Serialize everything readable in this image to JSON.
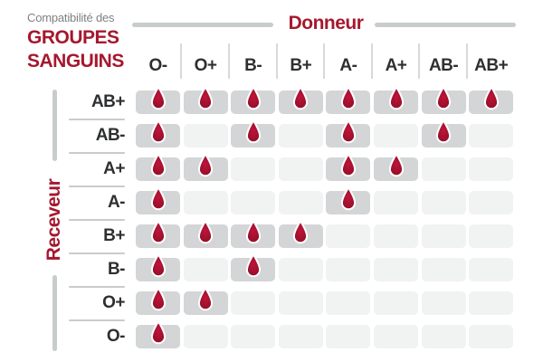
{
  "title": {
    "eyebrow": "Compatibilité des",
    "line1": "GROUPES",
    "line2": "SANGUINS"
  },
  "donor_axis_label": "Donneur",
  "recipient_axis_label": "Receveur",
  "chart_data": {
    "type": "heatmap",
    "title": "Compatibilité des groupes sanguins",
    "x_axis_label": "Donneur",
    "y_axis_label": "Receveur",
    "donors": [
      "O-",
      "O+",
      "B-",
      "B+",
      "A-",
      "A+",
      "AB-",
      "AB+"
    ],
    "recipients": [
      "AB+",
      "AB-",
      "A+",
      "A-",
      "B+",
      "B-",
      "O+",
      "O-"
    ],
    "marker": "blood-drop-icon",
    "matrix": [
      [
        1,
        1,
        1,
        1,
        1,
        1,
        1,
        1
      ],
      [
        1,
        0,
        1,
        0,
        1,
        0,
        1,
        0
      ],
      [
        1,
        1,
        0,
        0,
        1,
        1,
        0,
        0
      ],
      [
        1,
        0,
        0,
        0,
        1,
        0,
        0,
        0
      ],
      [
        1,
        1,
        1,
        1,
        0,
        0,
        0,
        0
      ],
      [
        1,
        0,
        1,
        0,
        0,
        0,
        0,
        0
      ],
      [
        1,
        1,
        0,
        0,
        0,
        0,
        0,
        0
      ],
      [
        1,
        0,
        0,
        0,
        0,
        0,
        0,
        0
      ]
    ]
  },
  "colors": {
    "brand_red": "#a5182e",
    "eyebrow_gray": "#7f8182",
    "label_dark": "#2d2f30",
    "line_gray": "#c9cccc",
    "cell_compatible": "#d3d5d6",
    "cell_empty": "#f1f2f2",
    "drop_center": "#c0143a",
    "drop_edge": "#8c0e27",
    "drop_stroke": "#ffffff"
  }
}
